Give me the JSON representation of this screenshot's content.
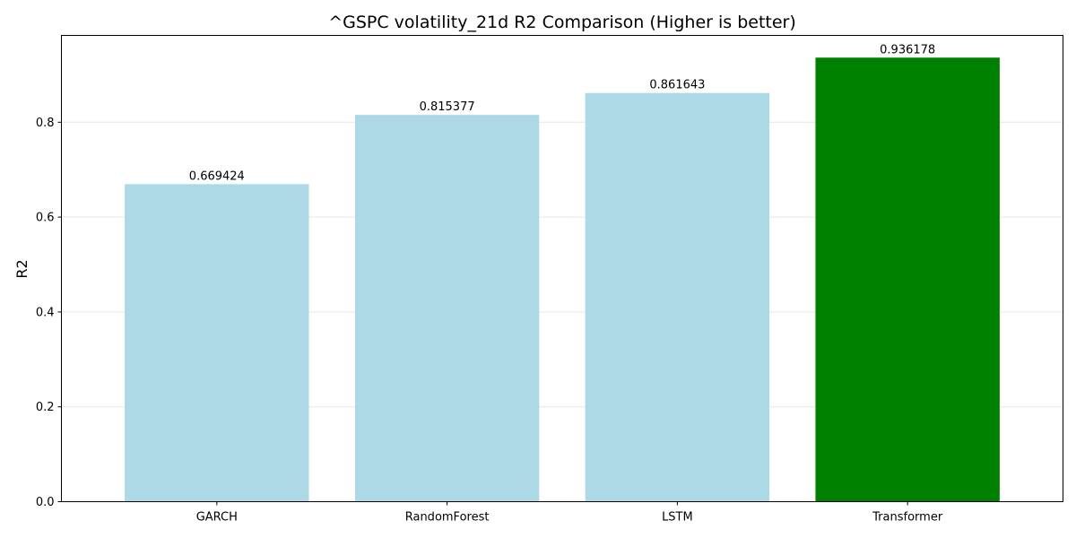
{
  "chart_data": {
    "type": "bar",
    "title": "^GSPC volatility_21d R2 Comparison (Higher is better)",
    "xlabel": "",
    "ylabel": "R2",
    "categories": [
      "GARCH",
      "RandomForest",
      "LSTM",
      "Transformer"
    ],
    "values": [
      0.669424,
      0.815377,
      0.861643,
      0.936178
    ],
    "value_labels": [
      "0.669424",
      "0.815377",
      "0.861643",
      "0.936178"
    ],
    "bar_colors": [
      "#add8e6",
      "#add8e6",
      "#add8e6",
      "#008000"
    ],
    "highlight": "Transformer",
    "ylim": [
      0,
      0.983
    ],
    "yticks": [
      0.0,
      0.2,
      0.4,
      0.6,
      0.8
    ],
    "ytick_labels": [
      "0.0",
      "0.2",
      "0.4",
      "0.6",
      "0.8"
    ],
    "grid": "y-axis",
    "legend": "none"
  }
}
